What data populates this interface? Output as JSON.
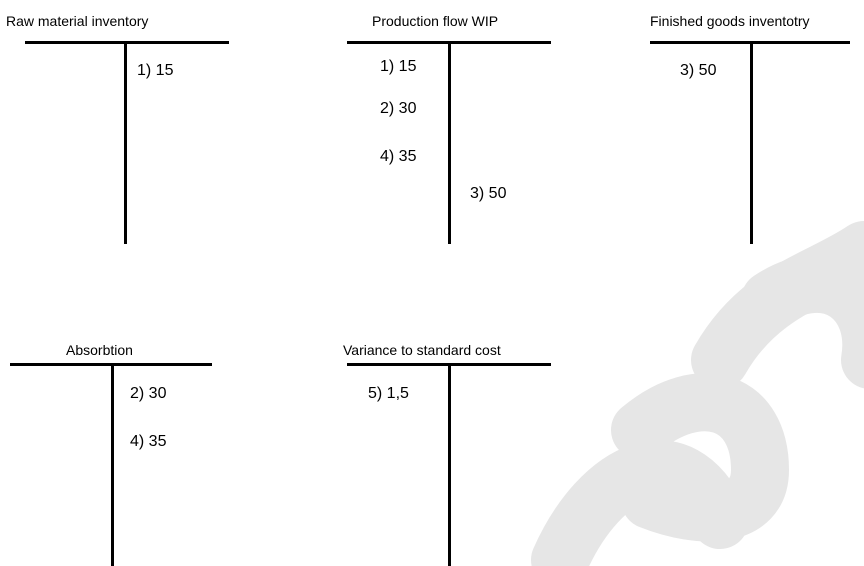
{
  "accounts": [
    {
      "title": "Raw material inventory",
      "entries": [
        {
          "side": "credit",
          "label": "1) 15"
        }
      ]
    },
    {
      "title": "Production flow WIP",
      "entries": [
        {
          "side": "debit",
          "label": "1) 15"
        },
        {
          "side": "debit",
          "label": "2) 30"
        },
        {
          "side": "debit",
          "label": "4) 35"
        },
        {
          "side": "credit",
          "label": "3) 50"
        }
      ]
    },
    {
      "title": "Finished goods inventotry",
      "entries": [
        {
          "side": "debit",
          "label": "3) 50"
        }
      ]
    },
    {
      "title": "Absorbtion",
      "entries": [
        {
          "side": "credit",
          "label": "2) 30"
        },
        {
          "side": "credit",
          "label": "4) 35"
        }
      ]
    },
    {
      "title": "Variance to standard cost",
      "entries": [
        {
          "side": "debit",
          "label": "5) 1,5"
        }
      ]
    }
  ],
  "watermark": {
    "color": "#e6e6e6"
  }
}
